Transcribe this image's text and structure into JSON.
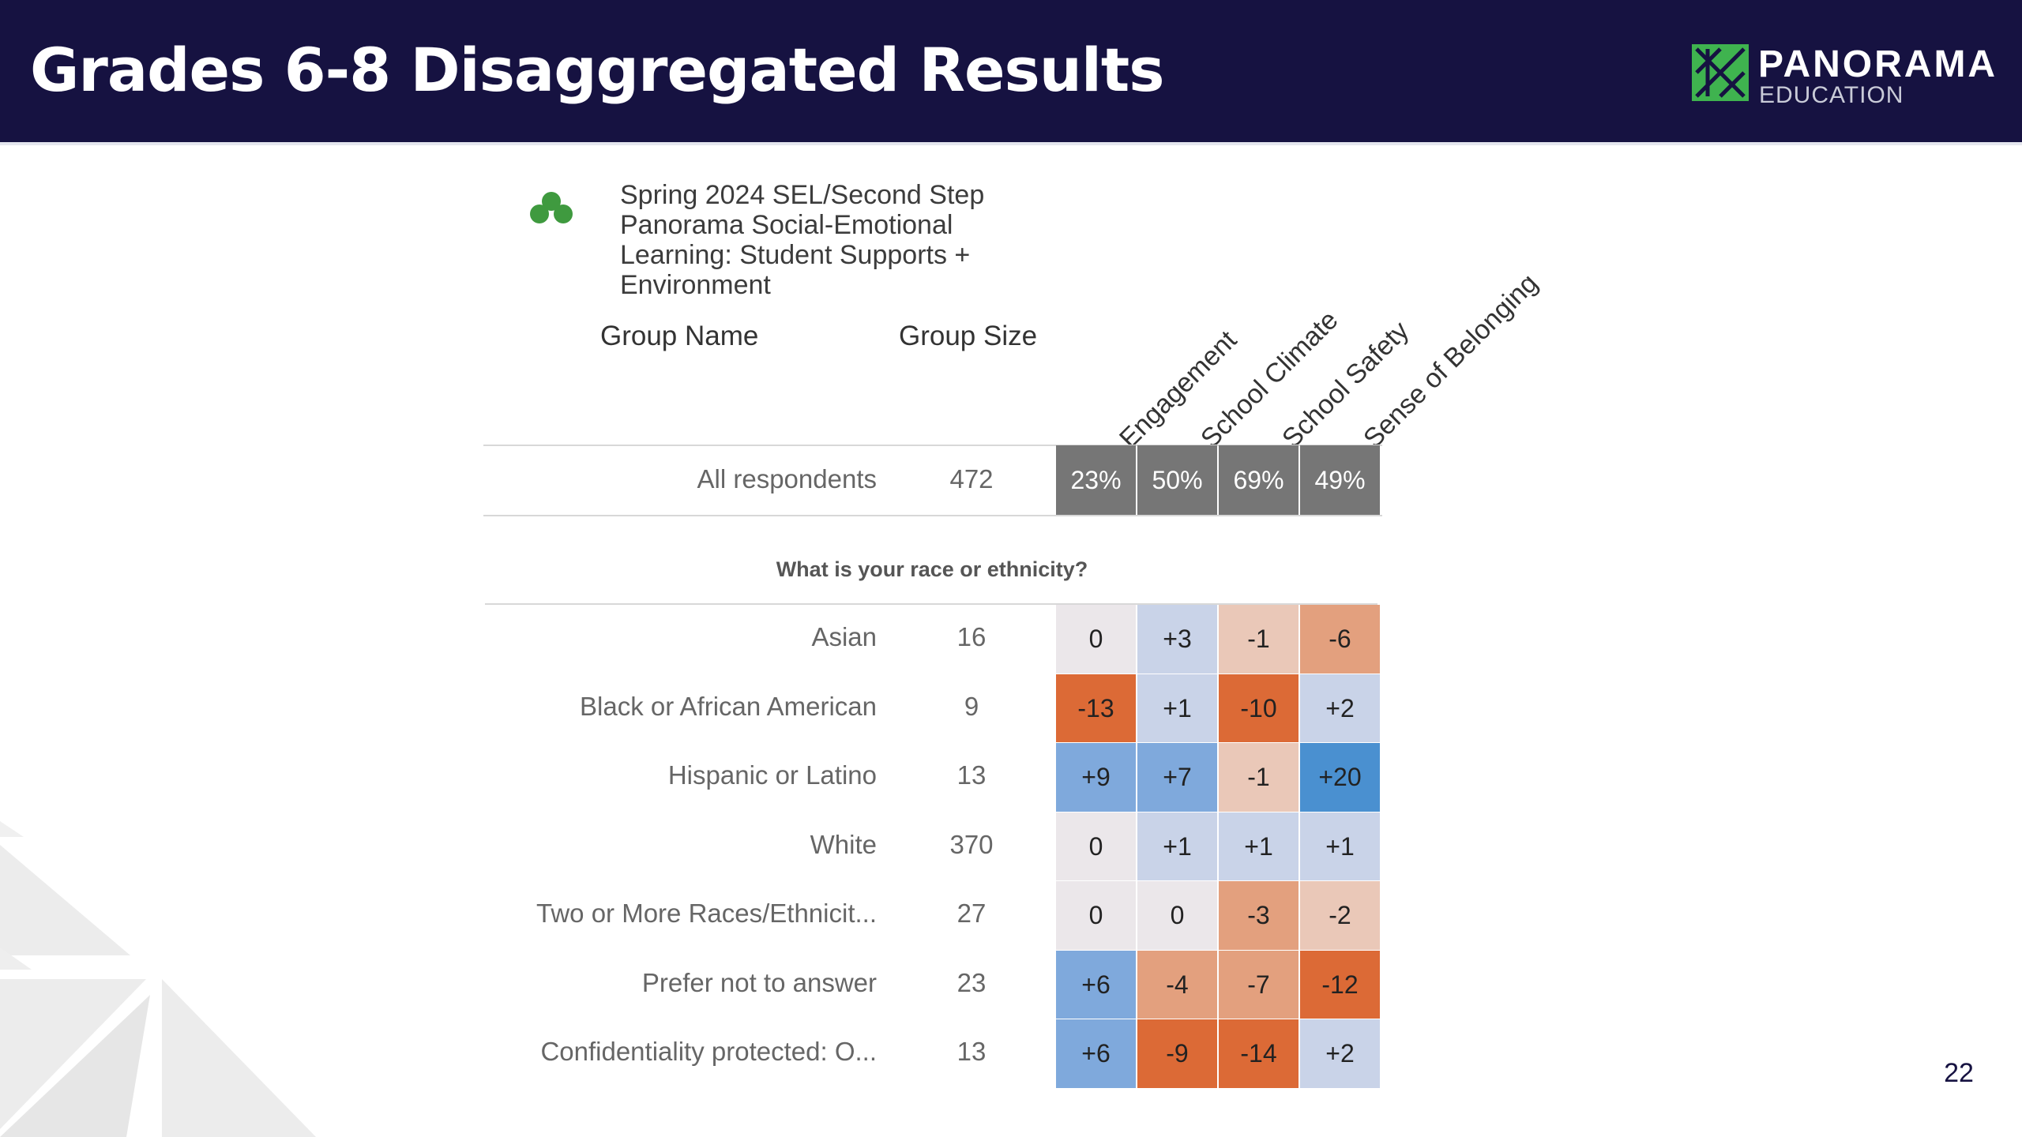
{
  "slide": {
    "title": "Grades 6-8 Disaggregated Results",
    "page_number": "22"
  },
  "logo": {
    "word": "PANORAMA",
    "sub": "EDUCATION"
  },
  "survey": {
    "title": "Spring 2024 SEL/Second Step Panorama Social-Emotional Learning: Student Supports + Environment",
    "icon": "three-circles-icon",
    "icon_color": "#3f9a3f"
  },
  "table": {
    "group_name_header": "Group Name",
    "group_size_header": "Group Size",
    "columns": [
      "Engagement",
      "School Climate",
      "School Safety",
      "Sense of Belonging"
    ],
    "all_row": {
      "name": "All respondents",
      "size": "472",
      "values": [
        "23%",
        "50%",
        "69%",
        "49%"
      ]
    },
    "section_label": "What is your race or ethnicity?",
    "rows": [
      {
        "name": "Asian",
        "size": "16",
        "values": [
          "0",
          "+3",
          "-1",
          "-6"
        ]
      },
      {
        "name": "Black or African American",
        "size": "9",
        "values": [
          "-13",
          "+1",
          "-10",
          "+2"
        ]
      },
      {
        "name": "Hispanic or Latino",
        "size": "13",
        "values": [
          "+9",
          "+7",
          "-1",
          "+20"
        ]
      },
      {
        "name": "White",
        "size": "370",
        "values": [
          "0",
          "+1",
          "+1",
          "+1"
        ]
      },
      {
        "name": "Two or More Races/Ethnicit...",
        "size": "27",
        "values": [
          "0",
          "0",
          "-3",
          "-2"
        ]
      },
      {
        "name": "Prefer not to answer",
        "size": "23",
        "values": [
          "+6",
          "-4",
          "-7",
          "-12"
        ]
      },
      {
        "name": "Confidentiality protected: O...",
        "size": "13",
        "values": [
          "+6",
          "-9",
          "-14",
          "+2"
        ]
      }
    ]
  },
  "colors": {
    "header_bg": "#161241",
    "logo_green": "#3fb34f",
    "all_cell_bg": "#767676",
    "neutral": "#ebe7ea",
    "positive_light": "#c9d3e8",
    "positive_mid": "#7fa9dc",
    "positive_strong": "#4a90d0",
    "negative_light": "#eac8b8",
    "negative_mid": "#e3a07e",
    "negative_strong": "#dc6a36"
  }
}
